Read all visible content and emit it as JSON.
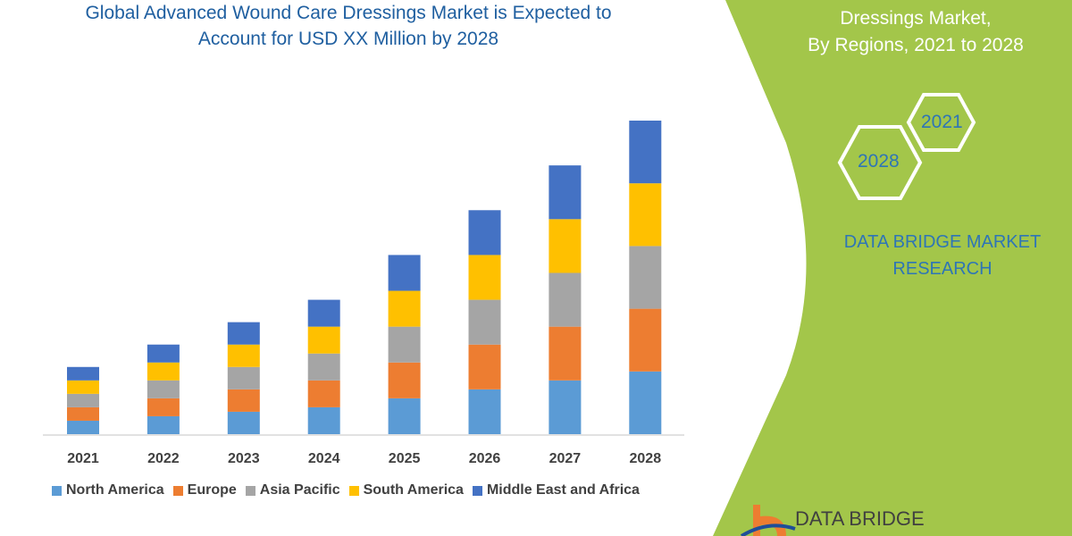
{
  "title_lines": [
    "Global Advanced Wound Care Dressings Market is Expected to",
    "Account for USD XX Million by 2028"
  ],
  "side_panel": {
    "title_lines": [
      "Dressings Market,",
      "By Regions, 2021 to 2028"
    ],
    "hex_labels": [
      "2021",
      "2028"
    ],
    "brand_lines": [
      "DATA BRIDGE MARKET",
      "RESEARCH"
    ],
    "logo_text": "DATA BRIDGE",
    "panel_color": "#a3c64a",
    "text_color": "#2e75b6"
  },
  "chart_data": {
    "type": "bar",
    "stacked": true,
    "title": "",
    "xlabel": "",
    "ylabel": "",
    "categories": [
      "2021",
      "2022",
      "2023",
      "2024",
      "2025",
      "2026",
      "2027",
      "2028"
    ],
    "series": [
      {
        "name": "North America",
        "color": "#5b9bd5",
        "values": [
          3,
          4,
          5,
          6,
          8,
          10,
          12,
          14
        ]
      },
      {
        "name": "Europe",
        "color": "#ed7d31",
        "values": [
          3,
          4,
          5,
          6,
          8,
          10,
          12,
          14
        ]
      },
      {
        "name": "Asia Pacific",
        "color": "#a5a5a5",
        "values": [
          3,
          4,
          5,
          6,
          8,
          10,
          12,
          14
        ]
      },
      {
        "name": "South America",
        "color": "#ffc000",
        "values": [
          3,
          4,
          5,
          6,
          8,
          10,
          12,
          14
        ]
      },
      {
        "name": "Middle East and Africa",
        "color": "#4472c4",
        "values": [
          3,
          4,
          5,
          6,
          8,
          10,
          12,
          14
        ]
      }
    ],
    "ylim": [
      0,
      70
    ],
    "y_axis_shown": false,
    "grid": false,
    "legend_position": "bottom"
  }
}
